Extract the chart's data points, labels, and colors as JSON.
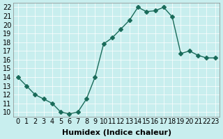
{
  "x": [
    0,
    1,
    2,
    3,
    4,
    5,
    6,
    7,
    8,
    9,
    10,
    11,
    12,
    13,
    14,
    15,
    16,
    17,
    18,
    19,
    20,
    21,
    22,
    23
  ],
  "y": [
    14,
    13,
    12,
    11.5,
    11,
    10,
    9.8,
    10,
    11.5,
    14,
    17.8,
    18.5,
    19.5,
    20.5,
    22,
    21.5,
    21.6,
    22,
    20.9,
    16.7,
    17,
    16.5,
    16.2,
    16.2
  ],
  "line_color": "#1a6b5a",
  "marker": "D",
  "marker_size": 3,
  "bg_color": "#c8eeee",
  "grid_color": "#ffffff",
  "xlabel": "Humidex (Indice chaleur)",
  "xlabel_fontsize": 8,
  "xlabel_bold": true,
  "tick_fontsize": 7,
  "ylim": [
    9.5,
    22.5
  ],
  "xlim": [
    -0.5,
    23.5
  ],
  "yticks": [
    10,
    11,
    12,
    13,
    14,
    15,
    16,
    17,
    18,
    19,
    20,
    21,
    22
  ],
  "xticks": [
    0,
    1,
    2,
    3,
    4,
    5,
    6,
    7,
    8,
    9,
    10,
    11,
    12,
    13,
    14,
    15,
    16,
    17,
    18,
    19,
    20,
    21,
    22,
    23
  ]
}
